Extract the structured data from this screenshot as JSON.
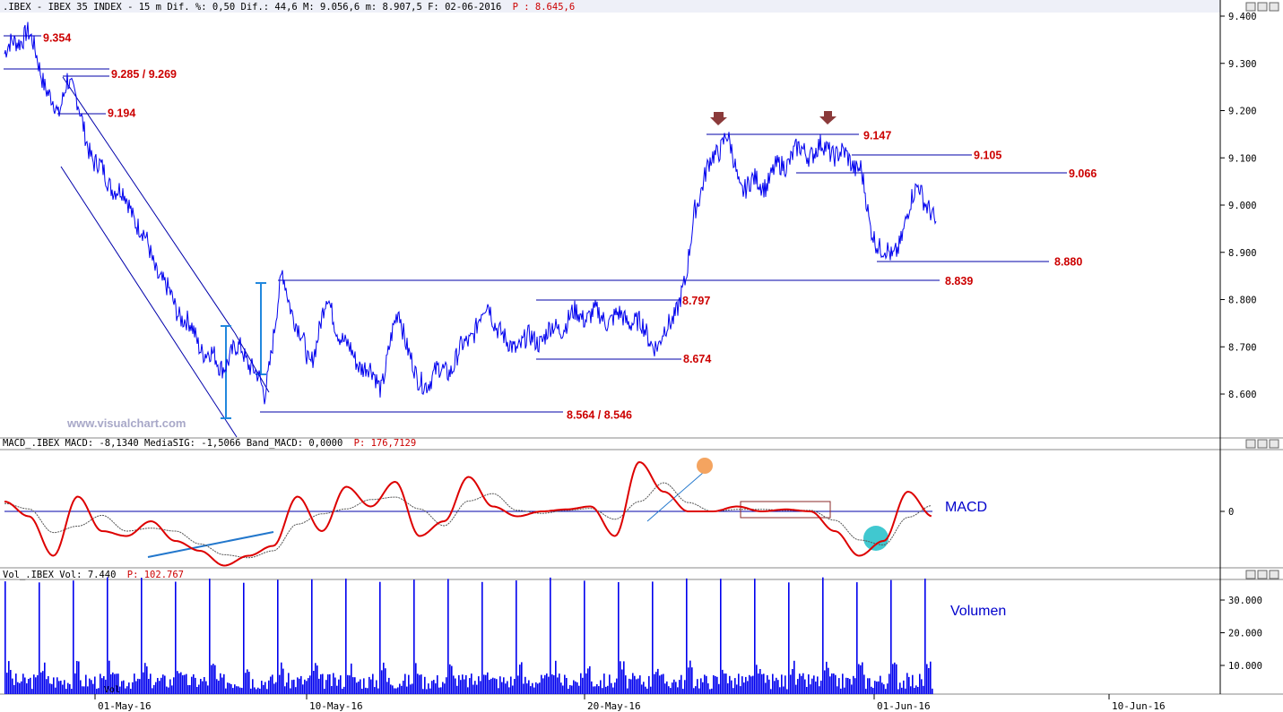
{
  "price_header": {
    "prefix": ".IBEX - IBEX 35 INDEX - 15 m Dif. %: 0,50 Dif.: 44,6 M: 9.056,6 m: 8.907,5 F: 02-06-2016",
    "p_value": "P : 8.645,6"
  },
  "macd_header": {
    "prefix": "MACD_.IBEX MACD: -8,1340 MediaSIG: -1,5066 Band_MACD: 0,0000",
    "p_value": "P: 176,7129"
  },
  "vol_header": {
    "prefix": "Vol_.IBEX Vol: 7.440",
    "p_value": "P: 102.767"
  },
  "watermark": "www.visualchart.com",
  "macd_panel_label": "MACD",
  "vol_panel_label": "Volumen",
  "vol_small_label": "Vol",
  "colors": {
    "price": "#0000ee",
    "level": "#0000aa",
    "annotation": "#cc0000",
    "macd_line": "#dd0000",
    "signal_line": "#555555",
    "volume": "#0000ee",
    "support_arrow": "#2288dd",
    "marker_orange": "#f4a460",
    "marker_cyan": "#40c8d0",
    "arrow_marker": "#8b3a3a"
  },
  "chart_data": [
    {
      "type": "line",
      "name": "IBEX 35 INDEX 15m price",
      "y_tick_labels": [
        "9.400",
        "9.300",
        "9.200",
        "9.100",
        "9.000",
        "8.900",
        "8.800",
        "8.700",
        "8.600"
      ],
      "ylim": [
        8500,
        9430
      ],
      "x_tick_labels": [
        "01-May-16",
        "10-May-16",
        "20-May-16",
        "01-Jun-16",
        "10-Jun-16"
      ],
      "series": [
        {
          "name": "price",
          "x": [
            0,
            25,
            60,
            70,
            100,
            140,
            180,
            220,
            240,
            265,
            290,
            310,
            340,
            360,
            380,
            420,
            440,
            460,
            500,
            540,
            560,
            600,
            640,
            680,
            700,
            730,
            760,
            770,
            790,
            805,
            820,
            850,
            880,
            920,
            955,
            965,
            990,
            1020,
            1040
          ],
          "values": [
            9320,
            9370,
            9180,
            9280,
            9090,
            9000,
            8820,
            8700,
            8660,
            8700,
            8600,
            8850,
            8660,
            8800,
            8700,
            8620,
            8780,
            8620,
            8660,
            8790,
            8700,
            8720,
            8770,
            8760,
            8760,
            8700,
            8830,
            9000,
            9100,
            9150,
            9040,
            9050,
            9110,
            9120,
            9080,
            8950,
            8880,
            9050,
            8940
          ]
        }
      ],
      "levels": [
        {
          "label": "9.354",
          "value": 9354
        },
        {
          "label": "9.285 / 9.269",
          "value": 9277
        },
        {
          "label": "9.194",
          "value": 9194
        },
        {
          "label": "9.147",
          "value": 9147
        },
        {
          "label": "9.105",
          "value": 9105
        },
        {
          "label": "9.066",
          "value": 9066
        },
        {
          "label": "8.880",
          "value": 8880
        },
        {
          "label": "8.839",
          "value": 8839
        },
        {
          "label": "8.797",
          "value": 8797
        },
        {
          "label": "8.674",
          "value": 8674
        },
        {
          "label": "8.564 / 8.546",
          "value": 8555
        }
      ]
    },
    {
      "type": "line",
      "name": "MACD",
      "y_tick_labels": [
        "0"
      ],
      "series": [
        {
          "name": "MACD",
          "values": [
            10,
            -5,
            -45,
            15,
            -20,
            -25,
            -10,
            -30,
            -40,
            -55,
            -45,
            -35,
            15,
            -20,
            25,
            5,
            30,
            -25,
            -10,
            35,
            5,
            -5,
            0,
            2,
            5,
            -25,
            50,
            20,
            0,
            0,
            5,
            0,
            2,
            0,
            -20,
            -45,
            -30,
            20,
            -5
          ]
        },
        {
          "name": "Signal",
          "values": [
            8,
            -3,
            -40,
            10,
            -18,
            -22,
            -12,
            -28,
            -38,
            -50,
            -44,
            -36,
            10,
            -15,
            20,
            4,
            25,
            -20,
            -9,
            30,
            6,
            -4,
            0,
            2,
            4,
            -20,
            40,
            18,
            0,
            0,
            4,
            0,
            2,
            0,
            -18,
            -40,
            -28,
            16,
            -4
          ]
        }
      ]
    },
    {
      "type": "bar",
      "name": "Volume",
      "y_tick_labels": [
        "30.000",
        "20.000",
        "10.000"
      ],
      "ylim": [
        0,
        36000
      ],
      "values": [
        35000,
        6000,
        5000,
        35000,
        5000,
        4000,
        35000,
        6000,
        35000,
        5000,
        35000,
        4000,
        35000,
        5000,
        35000,
        4000,
        35000,
        5000,
        35000,
        6000,
        35000,
        5000,
        35000,
        4000,
        35000,
        5000,
        35000,
        5000,
        35000,
        4000,
        35000,
        6000,
        35000,
        5000,
        35000,
        4000,
        35000,
        5000,
        35000
      ]
    }
  ]
}
